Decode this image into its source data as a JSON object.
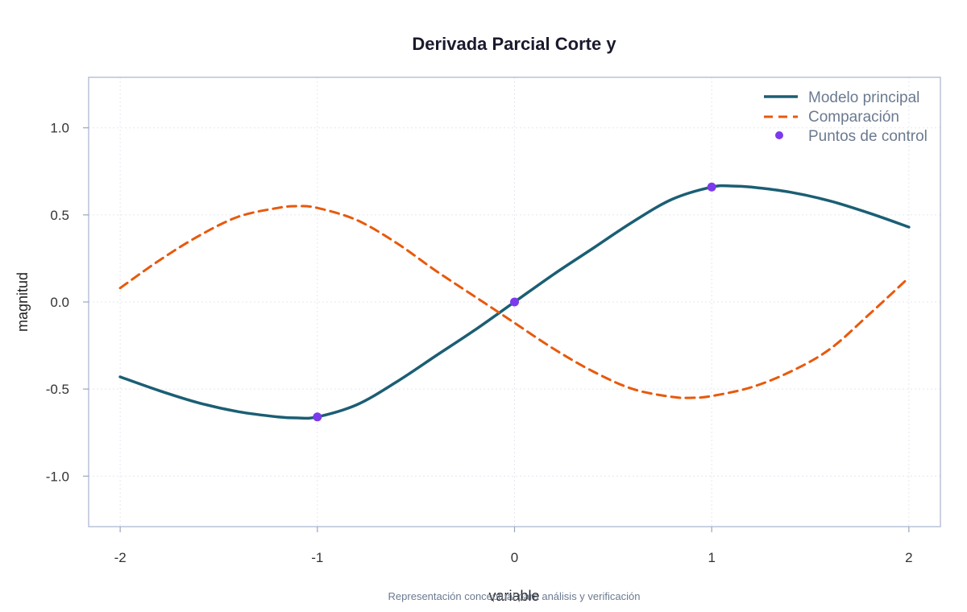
{
  "chart_data": {
    "type": "line",
    "title": "Derivada Parcial Corte y",
    "xlabel": "variable",
    "ylabel": "magnitud",
    "caption": "Representación conceptual para análisis y verificación",
    "xlim": [
      -2.16,
      2.16
    ],
    "ylim": [
      -1.29,
      1.29
    ],
    "x_ticks": [
      -2,
      -1,
      0,
      1,
      2
    ],
    "x_tick_labels": [
      "-2",
      "-1",
      "0",
      "1",
      "2"
    ],
    "y_ticks": [
      -1.0,
      -0.5,
      0.0,
      0.5,
      1.0
    ],
    "y_tick_labels": [
      "-1.0",
      "-0.5",
      "0.0",
      "0.5",
      "1.0"
    ],
    "grid": true,
    "legend_position": "top-right",
    "series": [
      {
        "name": "Modelo principal",
        "style": "solid",
        "color": "#1b5e74",
        "x": [
          -2.0,
          -1.8,
          -1.6,
          -1.4,
          -1.2,
          -1.1,
          -1.0,
          -0.8,
          -0.6,
          -0.4,
          -0.2,
          0.0,
          0.2,
          0.4,
          0.6,
          0.8,
          1.0,
          1.1,
          1.2,
          1.4,
          1.6,
          1.8,
          2.0
        ],
        "y": [
          -0.43,
          -0.51,
          -0.58,
          -0.63,
          -0.66,
          -0.666,
          -0.66,
          -0.59,
          -0.46,
          -0.31,
          -0.16,
          0.0,
          0.16,
          0.31,
          0.46,
          0.59,
          0.66,
          0.666,
          0.66,
          0.63,
          0.58,
          0.51,
          0.43
        ]
      },
      {
        "name": "Comparación",
        "style": "dashed",
        "color": "#e8590c",
        "x": [
          -2.0,
          -1.8,
          -1.6,
          -1.4,
          -1.2,
          -1.1,
          -1.0,
          -0.8,
          -0.6,
          -0.4,
          -0.2,
          0.0,
          0.2,
          0.4,
          0.6,
          0.8,
          0.9,
          1.0,
          1.2,
          1.4,
          1.6,
          1.8,
          2.0
        ],
        "y": [
          0.08,
          0.24,
          0.38,
          0.49,
          0.54,
          0.55,
          0.54,
          0.47,
          0.34,
          0.18,
          0.03,
          -0.12,
          -0.27,
          -0.4,
          -0.5,
          -0.545,
          -0.55,
          -0.54,
          -0.49,
          -0.4,
          -0.27,
          -0.07,
          0.14
        ]
      },
      {
        "name": "Puntos de control",
        "style": "points",
        "color": "#7c3aed",
        "x": [
          -1,
          0,
          1
        ],
        "y": [
          -0.66,
          0.0,
          0.66
        ]
      }
    ]
  }
}
